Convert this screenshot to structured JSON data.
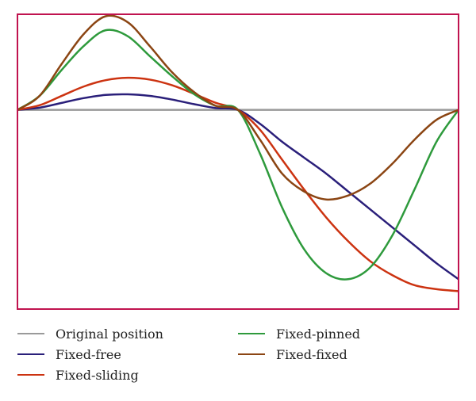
{
  "chart_data": {
    "type": "line",
    "title": "",
    "xlabel": "",
    "ylabel": "",
    "xlim": [
      0,
      1
    ],
    "ylim": [
      -1.0,
      0.48
    ],
    "grid": false,
    "frame_color": "#c0134f",
    "legend_placement": "bottom",
    "x": [
      0,
      0.05,
      0.1,
      0.15,
      0.2,
      0.25,
      0.3,
      0.35,
      0.4,
      0.45,
      0.5,
      0.55,
      0.6,
      0.65,
      0.7,
      0.75,
      0.8,
      0.85,
      0.9,
      0.95,
      1.0
    ],
    "series": [
      {
        "name": "Original position",
        "color": "#9a9a9a",
        "values": [
          0,
          0,
          0,
          0,
          0,
          0,
          0,
          0,
          0,
          0,
          0,
          0,
          0,
          0,
          0,
          0,
          0,
          0,
          0,
          0,
          0
        ]
      },
      {
        "name": "Fixed-free",
        "color": "#2a1f7a",
        "values": [
          0,
          0.011,
          0.035,
          0.059,
          0.075,
          0.078,
          0.07,
          0.052,
          0.029,
          0.009,
          0.0,
          -0.07,
          -0.16,
          -0.24,
          -0.32,
          -0.41,
          -0.5,
          -0.59,
          -0.68,
          -0.77,
          -0.85
        ]
      },
      {
        "name": "Fixed-sliding",
        "color": "#cc3311",
        "values": [
          0,
          0.023,
          0.07,
          0.117,
          0.149,
          0.161,
          0.152,
          0.124,
          0.081,
          0.035,
          0.0,
          -0.1,
          -0.25,
          -0.4,
          -0.54,
          -0.66,
          -0.76,
          -0.83,
          -0.88,
          -0.9,
          -0.91
        ]
      },
      {
        "name": "Fixed-pinned",
        "color": "#2e9a3c",
        "values": [
          0,
          0.07,
          0.2,
          0.32,
          0.4,
          0.37,
          0.27,
          0.17,
          0.08,
          0.02,
          0.0,
          -0.22,
          -0.49,
          -0.7,
          -0.82,
          -0.85,
          -0.79,
          -0.63,
          -0.4,
          -0.16,
          0.0
        ]
      },
      {
        "name": "Fixed-fixed",
        "color": "#8b4513",
        "values": [
          0,
          0.07,
          0.23,
          0.38,
          0.47,
          0.44,
          0.32,
          0.19,
          0.09,
          0.02,
          0.0,
          -0.15,
          -0.32,
          -0.41,
          -0.45,
          -0.43,
          -0.37,
          -0.27,
          -0.15,
          -0.05,
          0.0
        ]
      }
    ]
  }
}
